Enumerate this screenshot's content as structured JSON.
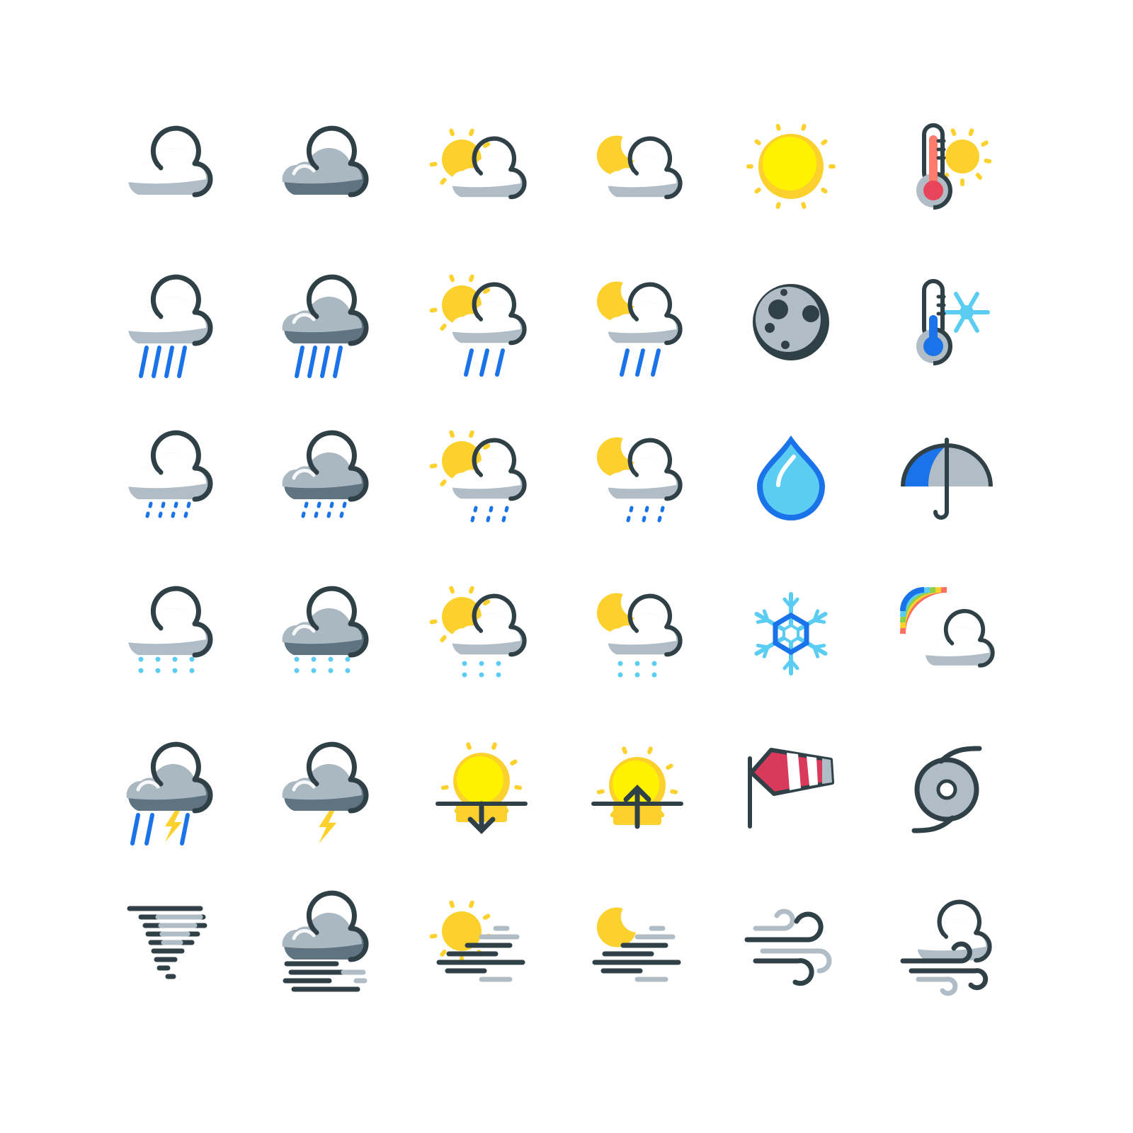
{
  "palette": {
    "outline": "#304047",
    "cloud_light": "#b0bdc6",
    "cloud_mid": "#aab8c2",
    "cloud_dark": "#5f7480",
    "sun": "#fcd12e",
    "sun_core": "#fff200",
    "rain": "#1a73e8",
    "drizzle": "#1a73e8",
    "snow": "#5bcdf2",
    "ice": "#5bcdf2",
    "bolt": "#fcd12e",
    "thermo_hot": "#e8445a",
    "thermo_hot_light": "#ff7b6b",
    "sock_red": "#d9395b",
    "sock_coral": "#ff7b6b",
    "rainbow": [
      "#ff6f61",
      "#fcd12e",
      "#8bd14a",
      "#5bcdf2",
      "#1a73e8"
    ]
  },
  "icons": [
    {
      "row": 1,
      "col": 1,
      "name": "cloudy-icon"
    },
    {
      "row": 1,
      "col": 2,
      "name": "overcast-icon"
    },
    {
      "row": 1,
      "col": 3,
      "name": "partly-cloudy-day-icon"
    },
    {
      "row": 1,
      "col": 4,
      "name": "partly-cloudy-night-icon"
    },
    {
      "row": 1,
      "col": 5,
      "name": "sunny-icon"
    },
    {
      "row": 1,
      "col": 6,
      "name": "thermometer-hot-icon"
    },
    {
      "row": 2,
      "col": 1,
      "name": "rain-icon"
    },
    {
      "row": 2,
      "col": 2,
      "name": "heavy-rain-icon"
    },
    {
      "row": 2,
      "col": 3,
      "name": "rain-day-icon"
    },
    {
      "row": 2,
      "col": 4,
      "name": "rain-night-icon"
    },
    {
      "row": 2,
      "col": 5,
      "name": "moon-icon"
    },
    {
      "row": 2,
      "col": 6,
      "name": "thermometer-cold-icon"
    },
    {
      "row": 3,
      "col": 1,
      "name": "drizzle-icon"
    },
    {
      "row": 3,
      "col": 2,
      "name": "heavy-drizzle-icon"
    },
    {
      "row": 3,
      "col": 3,
      "name": "drizzle-day-icon"
    },
    {
      "row": 3,
      "col": 4,
      "name": "drizzle-night-icon"
    },
    {
      "row": 3,
      "col": 5,
      "name": "raindrop-icon"
    },
    {
      "row": 3,
      "col": 6,
      "name": "umbrella-icon"
    },
    {
      "row": 4,
      "col": 1,
      "name": "snow-icon"
    },
    {
      "row": 4,
      "col": 2,
      "name": "heavy-snow-icon"
    },
    {
      "row": 4,
      "col": 3,
      "name": "snow-day-icon"
    },
    {
      "row": 4,
      "col": 4,
      "name": "snow-night-icon"
    },
    {
      "row": 4,
      "col": 5,
      "name": "snowflake-icon"
    },
    {
      "row": 4,
      "col": 6,
      "name": "rainbow-icon"
    },
    {
      "row": 5,
      "col": 1,
      "name": "thunderstorm-rain-icon"
    },
    {
      "row": 5,
      "col": 2,
      "name": "thunderstorm-icon"
    },
    {
      "row": 5,
      "col": 3,
      "name": "sunset-icon"
    },
    {
      "row": 5,
      "col": 4,
      "name": "sunrise-icon"
    },
    {
      "row": 5,
      "col": 5,
      "name": "windsock-icon"
    },
    {
      "row": 5,
      "col": 6,
      "name": "hurricane-icon"
    },
    {
      "row": 6,
      "col": 1,
      "name": "tornado-icon"
    },
    {
      "row": 6,
      "col": 2,
      "name": "fog-icon"
    },
    {
      "row": 6,
      "col": 3,
      "name": "fog-day-icon"
    },
    {
      "row": 6,
      "col": 4,
      "name": "fog-night-icon"
    },
    {
      "row": 6,
      "col": 5,
      "name": "wind-icon"
    },
    {
      "row": 6,
      "col": 6,
      "name": "windy-cloud-icon"
    }
  ]
}
